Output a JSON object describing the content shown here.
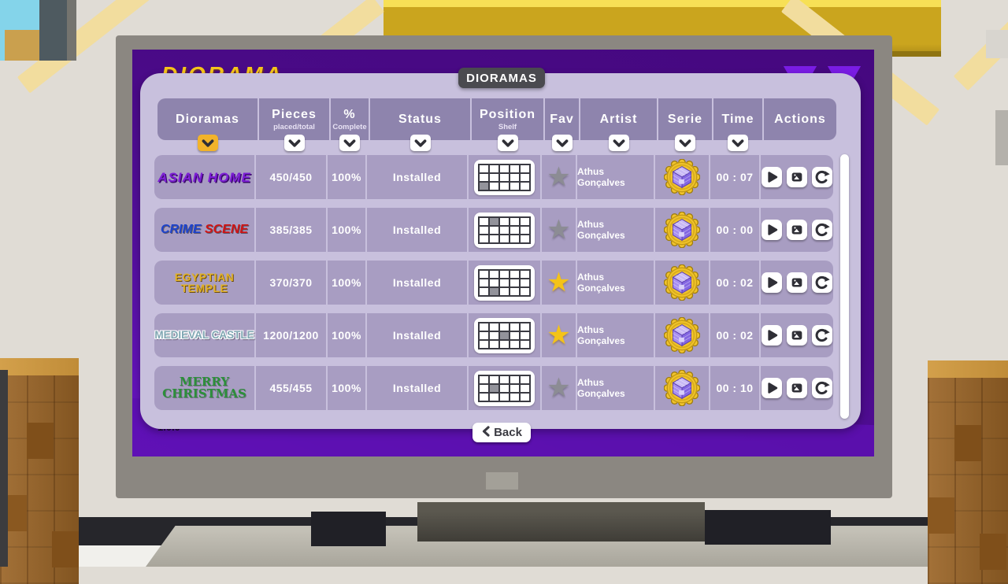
{
  "screen": {
    "logo_text": "DIORAMA",
    "title": "DIORAMAS",
    "version": "1.0.0",
    "back_label": "Back"
  },
  "table": {
    "columns": [
      {
        "id": "dioramas",
        "label": "Dioramas",
        "sub": "",
        "sortable": true,
        "sort_active": true
      },
      {
        "id": "pieces",
        "label": "Pieces",
        "sub": "placed/total",
        "sortable": true,
        "sort_active": false
      },
      {
        "id": "complete",
        "label": "%",
        "sub": "Complete",
        "sortable": true,
        "sort_active": false
      },
      {
        "id": "status",
        "label": "Status",
        "sub": "",
        "sortable": true,
        "sort_active": false
      },
      {
        "id": "position",
        "label": "Position",
        "sub": "Shelf",
        "sortable": true,
        "sort_active": false
      },
      {
        "id": "fav",
        "label": "Fav",
        "sub": "",
        "sortable": true,
        "sort_active": false
      },
      {
        "id": "artist",
        "label": "Artist",
        "sub": "",
        "sortable": true,
        "sort_active": false
      },
      {
        "id": "serie",
        "label": "Serie",
        "sub": "",
        "sortable": true,
        "sort_active": false
      },
      {
        "id": "time",
        "label": "Time",
        "sub": "",
        "sortable": true,
        "sort_active": false
      },
      {
        "id": "actions",
        "label": "Actions",
        "sub": "",
        "sortable": false,
        "sort_active": false
      }
    ],
    "shelf_grid": {
      "cols": 5,
      "rows": 3
    },
    "rows": [
      {
        "style": "asian",
        "name_parts": [
          {
            "text": "ASIAN HOME",
            "color": "#7d1ed6"
          }
        ],
        "pieces": "450/450",
        "complete": "100%",
        "status": "Installed",
        "shelf_cell": {
          "row": 2,
          "col": 0
        },
        "fav": false,
        "artist": "Athus Gonçalves",
        "time": "00 : 07"
      },
      {
        "style": "crime",
        "name_parts": [
          {
            "text": "CRIME ",
            "color": "#1d43cc"
          },
          {
            "text": "SCENE",
            "color": "#cf1414"
          }
        ],
        "pieces": "385/385",
        "complete": "100%",
        "status": "Installed",
        "shelf_cell": {
          "row": 0,
          "col": 1
        },
        "fav": false,
        "artist": "Athus Gonçalves",
        "time": "00 : 00"
      },
      {
        "style": "egyptian",
        "name_parts": [
          {
            "text": "EGYPTIAN TEMPLE",
            "color": "#e2b22a"
          }
        ],
        "pieces": "370/370",
        "complete": "100%",
        "status": "Installed",
        "shelf_cell": {
          "row": 2,
          "col": 1
        },
        "fav": true,
        "artist": "Athus Gonçalves",
        "time": "00 : 02"
      },
      {
        "style": "medieval",
        "name_parts": [
          {
            "text": "MEDIEVAL CASTLE",
            "color": "#7fa6b2"
          }
        ],
        "pieces": "1200/1200",
        "complete": "100%",
        "status": "Installed",
        "shelf_cell": {
          "row": 1,
          "col": 2
        },
        "fav": true,
        "artist": "Athus Gonçalves",
        "time": "00 : 02"
      },
      {
        "style": "christmas",
        "name_parts": [
          {
            "text": "MERRY CHRISTMAS",
            "color": "#2c8f3a"
          }
        ],
        "pieces": "455/455",
        "complete": "100%",
        "status": "Installed",
        "shelf_cell": {
          "row": 1,
          "col": 1
        },
        "fav": false,
        "artist": "Athus Gonçalves",
        "time": "00 : 10"
      }
    ],
    "actions": [
      {
        "id": "play"
      },
      {
        "id": "photo"
      },
      {
        "id": "reset"
      }
    ]
  },
  "colors": {
    "accent_yellow": "#f2b32a",
    "star_on": "#f4c318",
    "star_off": "#8c8c94",
    "panel_bg": "#c8c0dd",
    "header_bg": "#8e84ad",
    "row_bg": "#a89dc2",
    "screen_purple": "#4a0a88",
    "title_pill_bg": "#4a4a4f"
  }
}
